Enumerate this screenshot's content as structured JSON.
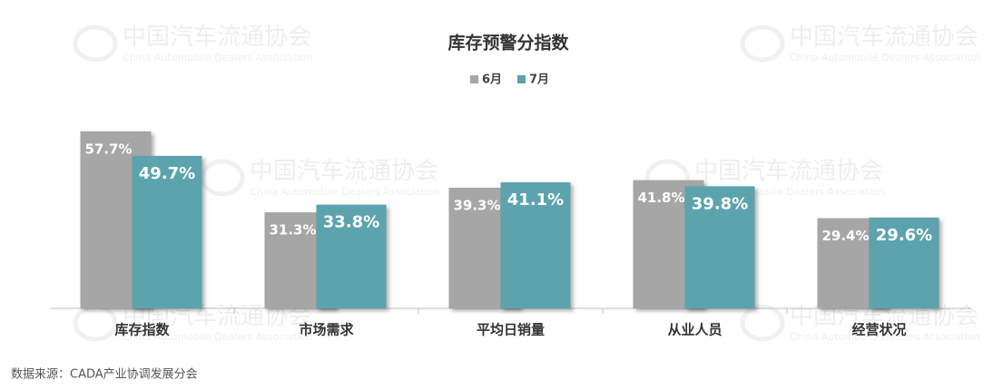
{
  "chart_data": {
    "type": "bar",
    "title": "库存预警分指数",
    "categories": [
      "库存指数",
      "市场需求",
      "平均日销量",
      "从业人员",
      "经营状况"
    ],
    "series": [
      {
        "name": "6月",
        "color": "#a6a6a6",
        "values": [
          57.7,
          31.3,
          39.3,
          41.8,
          29.4
        ],
        "value_labels": [
          "57.7%",
          "31.3%",
          "39.3%",
          "41.8%",
          "29.4%"
        ]
      },
      {
        "name": "7月",
        "color": "#5ba3ad",
        "values": [
          49.7,
          33.8,
          41.1,
          39.8,
          29.6
        ],
        "value_labels": [
          "49.7%",
          "33.8%",
          "41.1%",
          "39.8%",
          "29.6%"
        ]
      }
    ],
    "ylim": [
      0,
      60
    ],
    "watermark": {
      "cn": "中国汽车流通协会",
      "en": "China Automobile Dealers Association"
    },
    "source": "数据来源：CADA产业协调发展分会"
  }
}
